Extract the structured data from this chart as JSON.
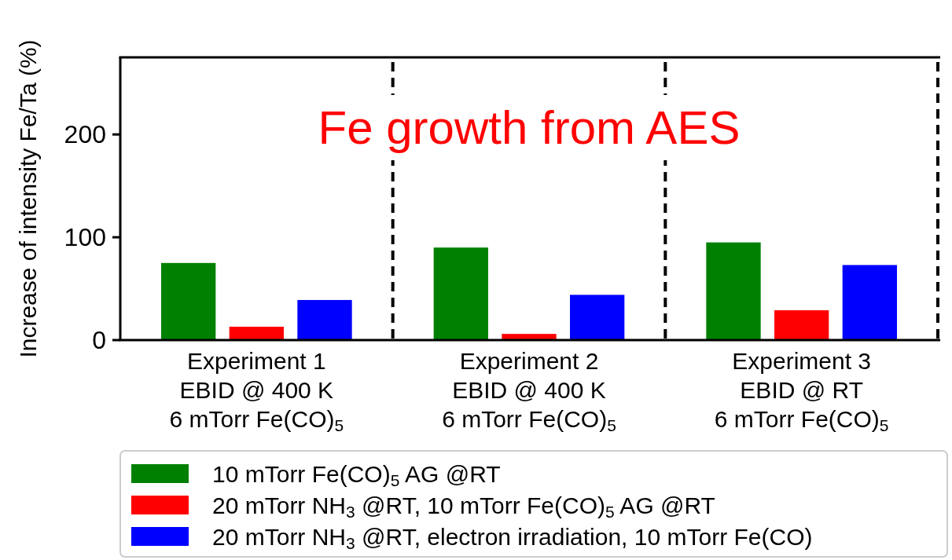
{
  "chart_data": {
    "type": "bar",
    "annotations": [
      "Fe growth from AES"
    ],
    "ylabel": "Increase of intensity Fe/Ta (%)",
    "categories": [
      "Experiment 1\nEBID @ 400 K\n6 mTorr Fe(CO)$_{5}$",
      "Experiment 2\nEBID @ 400 K\n6 mTorr Fe(CO)$_{5}$",
      "Experiment 3\nEBID @ RT\n6 mTorr Fe(CO)$_{5}$"
    ],
    "series": [
      {
        "name": "10 mTorr Fe(CO)$_{5}$ AG @RT",
        "color": "#008000",
        "values": [
          75,
          90,
          95
        ]
      },
      {
        "name": "20 mTorr NH$_{3}$ @RT, 10 mTorr Fe(CO)$_{5}$ AG @RT",
        "color": "#ff0000",
        "values": [
          13,
          6,
          29
        ]
      },
      {
        "name": "20 mTorr NH$_{3}$ @RT, electron irradiation, 10 mTorr Fe(CO)",
        "color": "#0000ff",
        "values": [
          39,
          44,
          73
        ]
      }
    ],
    "ylim": [
      0,
      275
    ],
    "yticks": [
      0,
      100,
      200
    ],
    "legend": "bottom"
  }
}
